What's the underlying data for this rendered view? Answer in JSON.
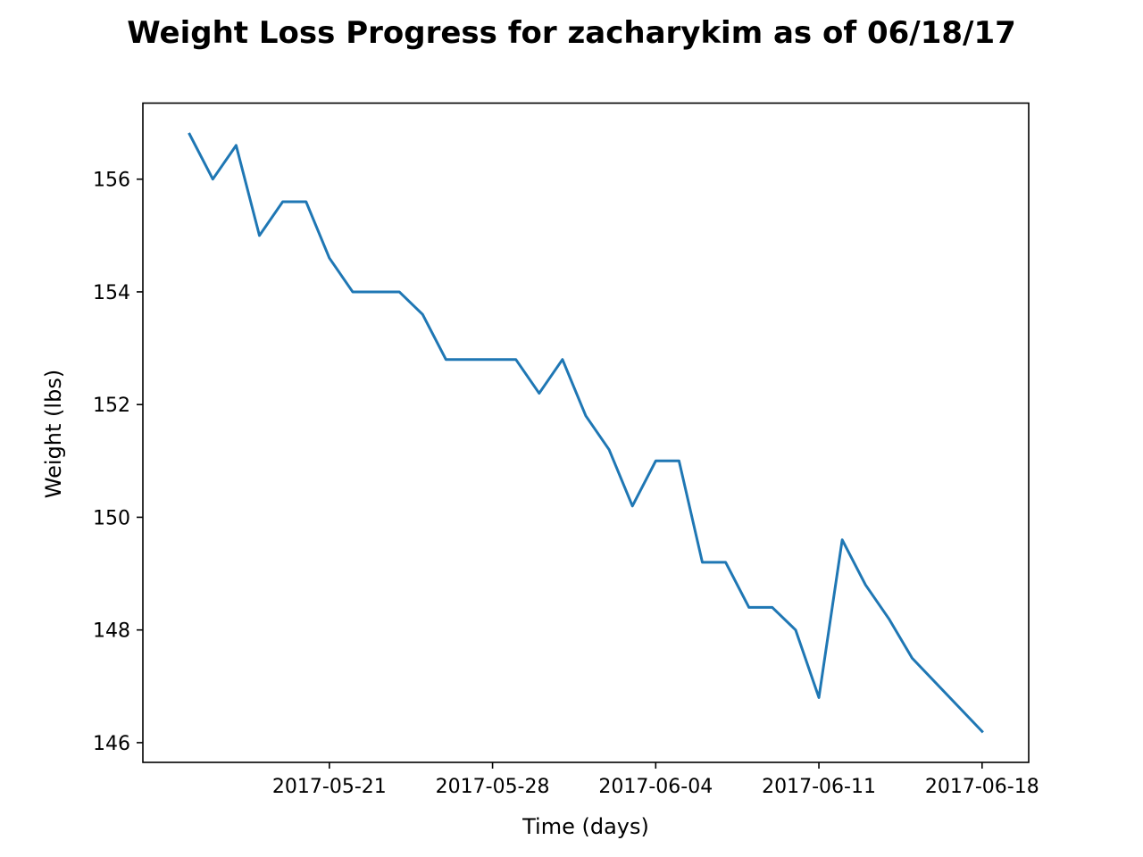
{
  "chart_data": {
    "type": "line",
    "title": "Weight Loss Progress for zacharykim as of 06/18/17",
    "xlabel": "Time (days)",
    "ylabel": "Weight (lbs)",
    "grid": false,
    "legend": "none",
    "line_color": "#1f77b4",
    "xlim": [
      "2017-05-13",
      "2017-06-20"
    ],
    "ylim": [
      145.65,
      157.35
    ],
    "x_ticks": [
      "2017-05-21",
      "2017-05-28",
      "2017-06-04",
      "2017-06-11",
      "2017-06-18"
    ],
    "y_ticks": [
      "146",
      "148",
      "150",
      "152",
      "154",
      "156"
    ],
    "series": [
      {
        "x": [
          "2017-05-15",
          "2017-05-16",
          "2017-05-17",
          "2017-05-18",
          "2017-05-19",
          "2017-05-20",
          "2017-05-21",
          "2017-05-22",
          "2017-05-23",
          "2017-05-24",
          "2017-05-25",
          "2017-05-26",
          "2017-05-27",
          "2017-05-28",
          "2017-05-29",
          "2017-05-30",
          "2017-05-31",
          "2017-06-01",
          "2017-06-02",
          "2017-06-03",
          "2017-06-04",
          "2017-06-05",
          "2017-06-06",
          "2017-06-07",
          "2017-06-08",
          "2017-06-09",
          "2017-06-10",
          "2017-06-11",
          "2017-06-12",
          "2017-06-13",
          "2017-06-14",
          "2017-06-15",
          "2017-06-18"
        ],
        "values": [
          156.8,
          156.0,
          156.6,
          155.0,
          155.6,
          155.6,
          154.6,
          154.0,
          154.0,
          154.0,
          153.6,
          152.8,
          152.8,
          152.8,
          152.8,
          152.2,
          152.8,
          151.8,
          151.2,
          150.2,
          151.0,
          151.0,
          149.2,
          149.2,
          148.4,
          148.4,
          148.0,
          146.8,
          149.6,
          148.8,
          148.2,
          147.5,
          146.2
        ]
      }
    ]
  }
}
